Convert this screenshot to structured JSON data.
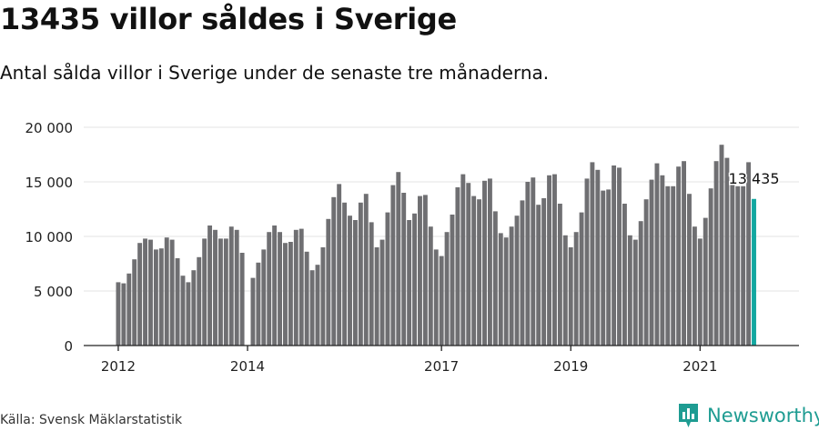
{
  "header": {
    "title": "13435 villor såldes i Sverige",
    "subtitle": "Antal sålda villor i Sverige under de senaste tre månaderna."
  },
  "footer": {
    "source": "Källa: Svensk Mäklarstatistik",
    "brand": "Newsworthy",
    "brand_icon": "newsworthy-logo-icon"
  },
  "colors": {
    "bar": "#6f6f72",
    "highlight": "#13a7a0",
    "grid": "#e3e3e3",
    "axis": "#222222",
    "brand": "#1e9c92"
  },
  "chart_data": {
    "type": "bar",
    "title": "13435 villor såldes i Sverige",
    "subtitle": "Antal sålda villor i Sverige under de senaste tre månaderna.",
    "xlabel": "",
    "ylabel": "",
    "ylim": [
      0,
      20000
    ],
    "yticks": [
      0,
      5000,
      10000,
      15000,
      20000
    ],
    "ytick_labels": [
      "0",
      "5 000",
      "10 000",
      "15 000",
      "20 000"
    ],
    "xtick_labels": [
      "2012",
      "2014",
      "2017",
      "2019",
      "2021"
    ],
    "grid": true,
    "legend": "none",
    "annotation": {
      "label": "13 435",
      "value": 13435
    },
    "series": [
      {
        "values": [
          5800,
          5700,
          6600,
          7900,
          9400,
          9800,
          9700,
          8800,
          8900,
          9900,
          9700,
          8000,
          6400,
          5800,
          6900,
          8100,
          9800,
          11000,
          10600,
          9800,
          9800,
          10900,
          10600,
          8500,
          0,
          6200,
          7600,
          8800,
          10400,
          11000,
          10400,
          9400,
          9500,
          10600,
          10700,
          8600,
          6900,
          7400,
          9000,
          11600,
          13600,
          14800,
          13100,
          11900,
          11500,
          13100,
          13900,
          11300,
          9000,
          9700,
          12200,
          14700,
          15900,
          14000,
          11500,
          12100,
          13700,
          13800,
          10900,
          8800,
          8200,
          10400,
          12000,
          14500,
          15700,
          14900,
          13700,
          13400,
          15100,
          15300,
          12300,
          10300,
          9900,
          10900,
          11900,
          13300,
          15000,
          15400,
          12900,
          13500,
          15600,
          15700,
          13000,
          10100,
          9000,
          10400,
          12200,
          15300,
          16800,
          16100,
          14200,
          14300,
          16500,
          16300,
          13000,
          10100,
          9700,
          11400,
          13400,
          15200,
          16700,
          15600,
          14600,
          14600,
          16400,
          16900,
          13900,
          10900,
          9800,
          11700,
          14400,
          16900,
          18400,
          17200,
          14800,
          14600,
          14600,
          16800,
          13435
        ]
      }
    ]
  }
}
